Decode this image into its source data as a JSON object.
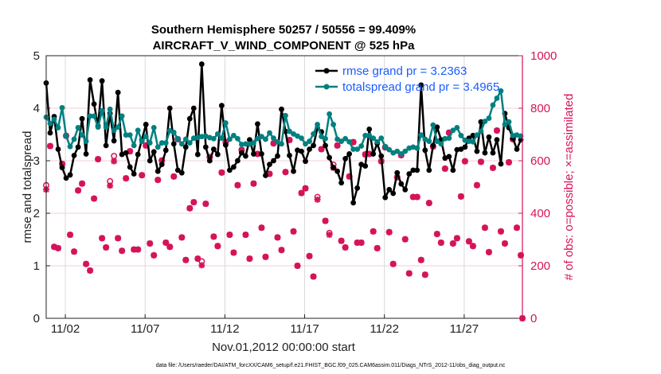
{
  "chart_data": {
    "type": "line",
    "title": [
      "Southern Hemisphere 50257 / 50556 = 99.409%",
      "AIRCRAFT_V_WIND_COMPONENT @ 525 hPa"
    ],
    "xlabel": "Nov.01,2012 00:00:00 start",
    "ylabel": "rmse and totalspread",
    "ylabel_right": "# of obs: o=possible; ×=assimilated",
    "footnote": "data file: /Users/raeder/DAI/ATM_forcXX/CAM6_setup/f.e21.FHIST_BGC.f09_025.CAM6assim.011/Diags_NTrS_2012-11/obs_diag_output.nc",
    "xlim_days": [
      -0.2,
      29.65
    ],
    "x_start_day": -0.2,
    "x_step_day": 0.25,
    "xticks": [
      {
        "day": 1,
        "label": "11/02"
      },
      {
        "day": 6,
        "label": "11/07"
      },
      {
        "day": 11,
        "label": "11/12"
      },
      {
        "day": 16,
        "label": "11/17"
      },
      {
        "day": 21,
        "label": "11/22"
      },
      {
        "day": 26,
        "label": "11/27"
      }
    ],
    "ylim": [
      0,
      5
    ],
    "yticks": [
      "0",
      "1",
      "2",
      "3",
      "4",
      "5"
    ],
    "ylim_right": [
      0,
      1000
    ],
    "yticks_right": [
      "0",
      "200",
      "400",
      "600",
      "800",
      "1000"
    ],
    "legend_position": "top-right",
    "colors": {
      "rmse": "#000000",
      "totalspread": "#008080",
      "obs": "#d6135a",
      "legend_text": "#1a5cff"
    },
    "series": [
      {
        "name": "rmse grand pr = 3.2363",
        "values": [
          4.48,
          3.53,
          3.84,
          3.22,
          2.87,
          2.67,
          2.73,
          3.1,
          3.26,
          3.8,
          3.13,
          4.54,
          4.08,
          3.66,
          4.52,
          3.29,
          3.9,
          3.38,
          4.3,
          3.12,
          3.15,
          2.88,
          2.75,
          3.12,
          3.4,
          3.69,
          3.0,
          3.17,
          2.8,
          2.93,
          3.2,
          4.0,
          3.32,
          2.82,
          2.77,
          3.26,
          3.8,
          4.0,
          3.12,
          4.84,
          3.26,
          3.0,
          3.22,
          3.12,
          4.05,
          3.3,
          2.82,
          2.88,
          3.0,
          3.15,
          3.09,
          3.4,
          3.13,
          3.7,
          3.13,
          2.72,
          2.93,
          3.0,
          3.09,
          3.98,
          3.56,
          3.1,
          2.8,
          3.2,
          3.18,
          2.99,
          3.22,
          3.29,
          3.62,
          3.55,
          3.29,
          3.06,
          2.87,
          2.8,
          2.58,
          3.04,
          3.13,
          2.2,
          2.48,
          2.93,
          2.9,
          3.6,
          3.13,
          3.33,
          3.09,
          2.3,
          2.45,
          2.38,
          2.77,
          2.56,
          2.45,
          2.75,
          2.82,
          2.82,
          4.44,
          3.2,
          2.82,
          3.29,
          3.64,
          3.4,
          3.05,
          3.08,
          2.82,
          3.21,
          3.22,
          3.26,
          3.43,
          3.48,
          3.18,
          3.74,
          3.15,
          3.45,
          3.15,
          3.4,
          2.94,
          3.9,
          3.63,
          3.43,
          3.22,
          3.4
        ]
      },
      {
        "name": "totalspread grand pr = 3.4965",
        "values": [
          3.83,
          3.71,
          3.79,
          3.63,
          4.01,
          3.47,
          3.27,
          3.41,
          3.63,
          3.49,
          3.37,
          3.85,
          3.85,
          3.64,
          3.95,
          3.64,
          3.98,
          3.58,
          3.64,
          3.85,
          3.49,
          3.49,
          3.29,
          3.58,
          3.37,
          3.46,
          3.34,
          3.63,
          3.26,
          3.34,
          3.34,
          3.57,
          3.54,
          3.42,
          3.32,
          3.41,
          3.34,
          3.43,
          3.44,
          3.46,
          3.47,
          3.44,
          3.42,
          3.51,
          3.43,
          3.72,
          3.41,
          3.48,
          3.42,
          3.31,
          3.32,
          3.32,
          3.34,
          3.42,
          3.46,
          3.41,
          3.53,
          3.43,
          3.36,
          3.32,
          3.86,
          3.56,
          3.51,
          3.47,
          3.43,
          3.32,
          3.37,
          3.51,
          3.69,
          3.46,
          3.42,
          3.89,
          3.69,
          3.41,
          3.37,
          3.42,
          3.36,
          3.22,
          3.22,
          3.28,
          3.48,
          3.48,
          3.43,
          3.36,
          3.43,
          3.27,
          3.21,
          3.15,
          3.18,
          3.13,
          3.18,
          3.24,
          3.26,
          3.24,
          3.49,
          3.41,
          3.37,
          3.68,
          3.37,
          3.32,
          3.42,
          3.43,
          3.58,
          3.63,
          3.48,
          3.39,
          3.37,
          3.36,
          3.49,
          3.56,
          3.75,
          3.81,
          4.06,
          4.19,
          4.33,
          3.69,
          3.74,
          3.48,
          3.49,
          3.47
        ]
      }
    ],
    "obs_possible": [
      507,
      656,
      272,
      267,
      588,
      695,
      318,
      254,
      487,
      513,
      207,
      182,
      456,
      606,
      305,
      270,
      522,
      618,
      305,
      257,
      533,
      636,
      262,
      262,
      545,
      658,
      285,
      240,
      527,
      601,
      288,
      272,
      540,
      682,
      308,
      222,
      419,
      442,
      227,
      217,
      436,
      614,
      311,
      275,
      555,
      671,
      318,
      250,
      507,
      641,
      318,
      227,
      513,
      626,
      345,
      234,
      550,
      666,
      308,
      260,
      557,
      679,
      331,
      200,
      477,
      495,
      237,
      159,
      462,
      644,
      371,
      325,
      585,
      658,
      295,
      270,
      540,
      671,
      288,
      288,
      624,
      626,
      331,
      267,
      598,
      651,
      328,
      207,
      537,
      621,
      301,
      171,
      462,
      462,
      222,
      166,
      439,
      654,
      321,
      288,
      570,
      707,
      285,
      305,
      464,
      598,
      293,
      275,
      507,
      596,
      345,
      252,
      573,
      715,
      331,
      285,
      594,
      682,
      345,
      240,
      0
    ],
    "obs_assimilated": [
      490,
      656,
      272,
      267,
      588,
      695,
      318,
      254,
      487,
      513,
      207,
      182,
      456,
      606,
      305,
      270,
      505,
      598,
      305,
      257,
      533,
      636,
      262,
      262,
      545,
      658,
      285,
      240,
      527,
      601,
      288,
      272,
      540,
      682,
      308,
      222,
      419,
      442,
      227,
      202,
      436,
      614,
      311,
      275,
      555,
      671,
      318,
      250,
      507,
      641,
      318,
      227,
      513,
      626,
      345,
      234,
      550,
      666,
      308,
      260,
      557,
      679,
      331,
      200,
      477,
      495,
      237,
      159,
      452,
      644,
      371,
      318,
      573,
      658,
      295,
      270,
      540,
      671,
      288,
      288,
      624,
      626,
      331,
      267,
      598,
      651,
      328,
      207,
      537,
      621,
      301,
      171,
      462,
      462,
      222,
      166,
      439,
      654,
      321,
      288,
      570,
      707,
      285,
      305,
      464,
      598,
      293,
      275,
      507,
      596,
      345,
      252,
      573,
      715,
      331,
      285,
      594,
      682,
      345,
      240,
      0
    ]
  }
}
